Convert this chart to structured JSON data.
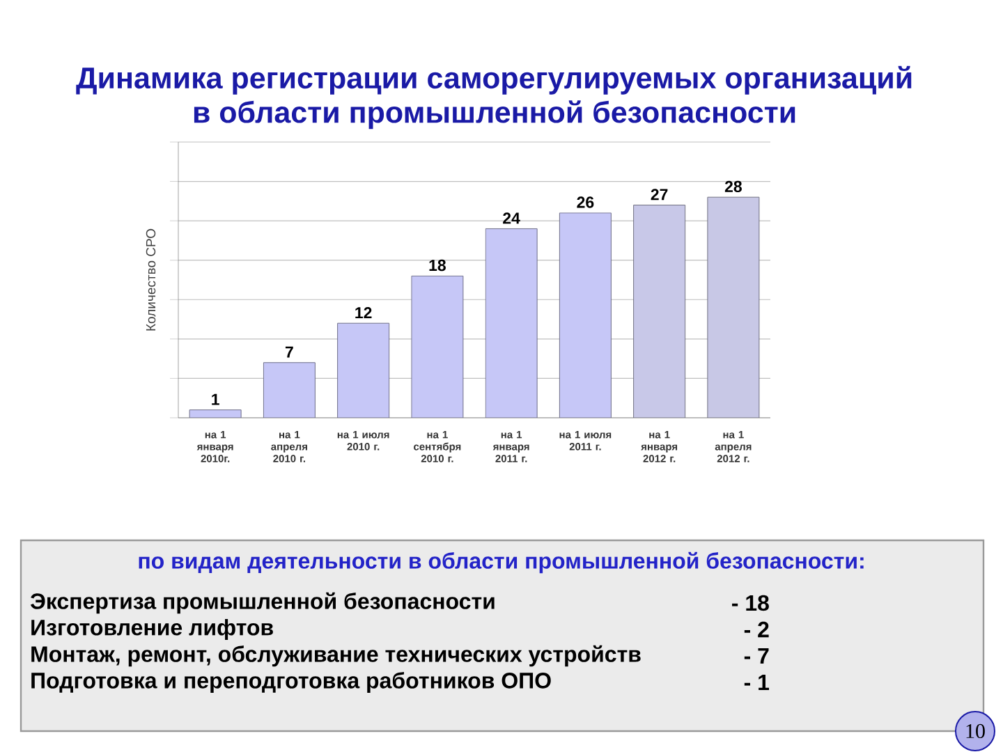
{
  "chart_data": {
    "type": "bar",
    "title": "Динамика регистрации саморегулируемых организаций в области промышленной безопасности",
    "ylabel": "Количество СРО",
    "categories": [
      "на 1 января 2010г.",
      "на 1 апреля 2010 г.",
      "на 1 июля 2010 г.",
      "на 1 сентября 2010 г.",
      "на 1 января 2011 г.",
      "на 1 июля 2011 г.",
      "на 1 января 2012 г.",
      "на 1 апреля 2012 г."
    ],
    "values": [
      1,
      7,
      12,
      18,
      24,
      26,
      27,
      28
    ],
    "colors": [
      "#c6c7f7",
      "#c6c7f7",
      "#c6c7f7",
      "#c6c7f7",
      "#c6c7f7",
      "#c6c7f7",
      "#c8c8e8",
      "#c8c8e6"
    ],
    "data_labels": true,
    "ylim": [
      0,
      35
    ],
    "yticks": [
      {
        "value": 0,
        "label": null
      },
      {
        "value": 5,
        "label": null
      },
      {
        "value": 10,
        "label": null
      },
      {
        "value": 15,
        "label": null
      },
      {
        "value": 20,
        "label": null
      },
      {
        "value": 25,
        "label": null
      },
      {
        "value": 30,
        "label": null
      },
      {
        "value": 35,
        "label": null
      }
    ],
    "grid": "y",
    "tick_labels": "x",
    "annotations": [
      "по видам деятельности в области промышленной безопасности:",
      "Экспертиза промышленной безопасности",
      "- 18",
      "Изготовление лифтов",
      "- 2",
      "Монтаж, ремонт, обслуживание технических устройств",
      "- 7",
      "Подготовка и переподготовка работников ОПО",
      "- 1",
      "10"
    ]
  }
}
